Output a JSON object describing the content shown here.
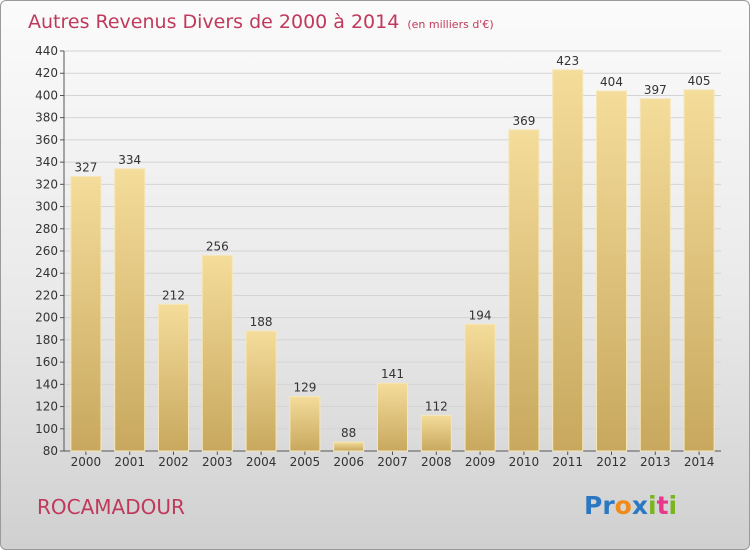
{
  "header": {
    "title": "Autres Revenus Divers de 2000 à 2014",
    "subtitle": "(en milliers d'€)"
  },
  "footer": {
    "place": "ROCAMADOUR",
    "brand": "Proxiti",
    "brand_letters": [
      {
        "char": "P",
        "color": "#2b78c2"
      },
      {
        "char": "r",
        "color": "#2b78c2"
      },
      {
        "char": "o",
        "color": "#f08a1a"
      },
      {
        "char": "x",
        "color": "#2b78c2"
      },
      {
        "char": "i",
        "color": "#7ab51d"
      },
      {
        "char": "t",
        "color": "#e8388a"
      },
      {
        "char": "i",
        "color": "#7ab51d"
      }
    ]
  },
  "chart_data": {
    "type": "bar",
    "title": "Autres Revenus Divers de 2000 à 2014",
    "subtitle": "(en milliers d'€)",
    "categories": [
      "2000",
      "2001",
      "2002",
      "2003",
      "2004",
      "2005",
      "2006",
      "2007",
      "2008",
      "2009",
      "2010",
      "2011",
      "2012",
      "2013",
      "2014"
    ],
    "values": [
      327,
      334,
      212,
      256,
      188,
      129,
      88,
      141,
      112,
      194,
      369,
      423,
      404,
      397,
      405
    ],
    "ylim": [
      80,
      440
    ],
    "yticks": [
      80,
      100,
      120,
      140,
      160,
      180,
      200,
      220,
      240,
      260,
      280,
      300,
      320,
      340,
      360,
      380,
      400,
      420,
      440
    ],
    "grid": true,
    "bar_color": "#e7cc8a",
    "bar_color_dark": "#c8a85e"
  }
}
